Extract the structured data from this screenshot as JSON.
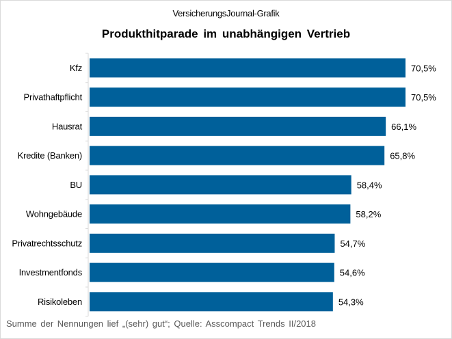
{
  "chart_data": {
    "type": "bar",
    "orientation": "horizontal",
    "subtitle": "VersicherungsJournal-Grafik",
    "title": "Produkthitparade  im unabhängigen  Vertrieb",
    "footnote": "Summe der Nennungen  lief „(sehr) gut“; Quelle: Asscompact Trends II/2018",
    "categories": [
      "Kfz",
      "Privathaftpflicht",
      "Hausrat",
      "Kredite (Banken)",
      "BU",
      "Wohngebäude",
      "Privatrechtsschutz",
      "Investmentfonds",
      "Risikoleben"
    ],
    "values": [
      70.5,
      70.5,
      66.1,
      65.8,
      58.4,
      58.2,
      54.7,
      54.6,
      54.3
    ],
    "labels": [
      "70,5%",
      "70,5%",
      "66,1%",
      "65,8%",
      "58,4%",
      "58,2%",
      "54,7%",
      "54,6%",
      "54,3%"
    ],
    "xlim": [
      0,
      70.5
    ],
    "grid": false,
    "bar_color": "#00609a"
  }
}
